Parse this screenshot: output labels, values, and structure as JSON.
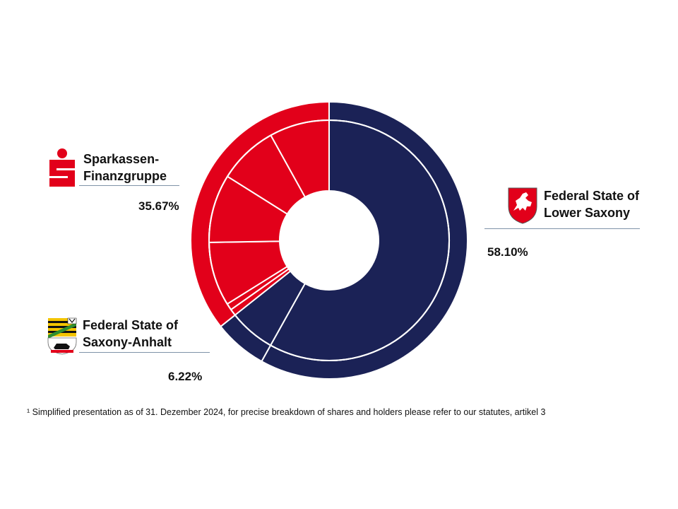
{
  "chart_data": {
    "type": "donut",
    "title": "",
    "groups": [
      {
        "name": "Federal State of Lower Saxony",
        "label_lines": [
          "Federal State of",
          "Lower Saxony"
        ],
        "value": 58.1,
        "value_label": "58.10%",
        "color": "#1b2256",
        "sub_values": [
          58.1
        ]
      },
      {
        "name": "Federal State of Saxony-Anhalt",
        "label_lines": [
          "Federal State of",
          "Saxony-Anhalt"
        ],
        "value": 6.22,
        "value_label": "6.22%",
        "color": "#1b2256",
        "sub_values": [
          6.22
        ]
      },
      {
        "name": "Sparkassen-Finanzgruppe",
        "label_lines": [
          "Sparkassen-",
          "Finanzgruppe"
        ],
        "value": 35.67,
        "value_label": "35.67%",
        "color": "#e2001a",
        "sub_values": [
          0.9,
          0.9,
          8.6,
          9.2,
          8.0,
          8.07
        ]
      }
    ]
  },
  "footnote": "¹ Simplified presentation as of 31. Dezember 2024,  for precise breakdown of shares and holders please refer to our statutes, artikel 3",
  "colors": {
    "navy": "#1b2256",
    "red": "#e2001a",
    "rule": "#7f93a8"
  },
  "icons": {
    "lower_saxony": "lower-saxony-coat-of-arms-icon",
    "saxony_anhalt": "saxony-anhalt-coat-of-arms-icon",
    "sparkasse": "sparkasse-logo-icon"
  }
}
